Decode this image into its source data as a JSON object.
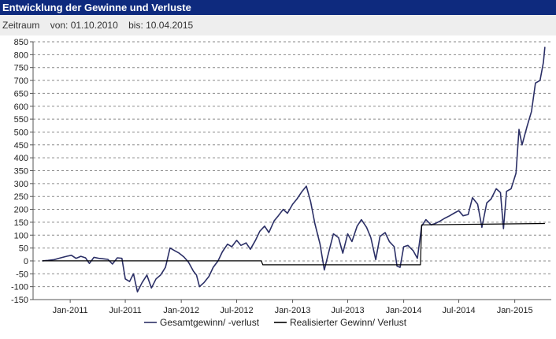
{
  "header": {
    "title": "Entwicklung der Gewinne und Verluste",
    "range_label": "Zeitraum",
    "from_text": "von: 01.10.2010",
    "to_text": "bis: 10.04.2015"
  },
  "chart_data": {
    "type": "line",
    "title": "",
    "xlabel": "",
    "ylabel": "",
    "ylim": [
      -150,
      850
    ],
    "yticks": [
      -150,
      -100,
      -50,
      0,
      50,
      100,
      150,
      200,
      250,
      300,
      350,
      400,
      450,
      500,
      550,
      600,
      650,
      700,
      750,
      800,
      850
    ],
    "xlim": [
      "2010-09-01",
      "2015-05-01"
    ],
    "xticks": [
      {
        "date": "2011-01-01",
        "label": "Jan-2011"
      },
      {
        "date": "2011-07-01",
        "label": "Jul-2011"
      },
      {
        "date": "2012-01-01",
        "label": "Jan-2012"
      },
      {
        "date": "2012-07-01",
        "label": "Jul-2012"
      },
      {
        "date": "2013-01-01",
        "label": "Jan-2013"
      },
      {
        "date": "2013-07-01",
        "label": "Jul-2013"
      },
      {
        "date": "2014-01-01",
        "label": "Jan-2014"
      },
      {
        "date": "2014-07-01",
        "label": "Jul-2014"
      },
      {
        "date": "2015-01-01",
        "label": "Jan-2015"
      }
    ],
    "grid": true,
    "legend_position": "bottom",
    "series": [
      {
        "name": "Gesamtgewinn/ -verlust",
        "color": "#2b2f66",
        "points": [
          [
            "2010-10-01",
            0
          ],
          [
            "2010-10-20",
            2
          ],
          [
            "2010-11-10",
            5
          ],
          [
            "2010-12-01",
            12
          ],
          [
            "2010-12-20",
            18
          ],
          [
            "2011-01-05",
            22
          ],
          [
            "2011-01-20",
            10
          ],
          [
            "2011-02-05",
            18
          ],
          [
            "2011-02-20",
            12
          ],
          [
            "2011-03-05",
            -10
          ],
          [
            "2011-03-20",
            14
          ],
          [
            "2011-04-05",
            10
          ],
          [
            "2011-04-20",
            8
          ],
          [
            "2011-05-05",
            6
          ],
          [
            "2011-05-20",
            -12
          ],
          [
            "2011-06-05",
            12
          ],
          [
            "2011-06-20",
            10
          ],
          [
            "2011-07-01",
            -70
          ],
          [
            "2011-07-15",
            -80
          ],
          [
            "2011-07-28",
            -50
          ],
          [
            "2011-08-10",
            -120
          ],
          [
            "2011-08-25",
            -85
          ],
          [
            "2011-09-10",
            -55
          ],
          [
            "2011-09-25",
            -105
          ],
          [
            "2011-10-10",
            -70
          ],
          [
            "2011-10-25",
            -55
          ],
          [
            "2011-11-10",
            -25
          ],
          [
            "2011-11-25",
            50
          ],
          [
            "2011-12-10",
            40
          ],
          [
            "2011-12-25",
            30
          ],
          [
            "2012-01-10",
            15
          ],
          [
            "2012-01-25",
            -5
          ],
          [
            "2012-02-10",
            -40
          ],
          [
            "2012-02-20",
            -55
          ],
          [
            "2012-03-01",
            -100
          ],
          [
            "2012-03-15",
            -85
          ],
          [
            "2012-04-01",
            -60
          ],
          [
            "2012-04-15",
            -25
          ],
          [
            "2012-05-01",
            0
          ],
          [
            "2012-05-15",
            35
          ],
          [
            "2012-06-01",
            65
          ],
          [
            "2012-06-15",
            55
          ],
          [
            "2012-07-01",
            80
          ],
          [
            "2012-07-15",
            60
          ],
          [
            "2012-08-01",
            70
          ],
          [
            "2012-08-15",
            45
          ],
          [
            "2012-09-01",
            80
          ],
          [
            "2012-09-15",
            115
          ],
          [
            "2012-10-01",
            135
          ],
          [
            "2012-10-15",
            110
          ],
          [
            "2012-11-01",
            155
          ],
          [
            "2012-11-15",
            175
          ],
          [
            "2012-12-01",
            200
          ],
          [
            "2012-12-15",
            185
          ],
          [
            "2013-01-01",
            220
          ],
          [
            "2013-01-15",
            240
          ],
          [
            "2013-02-01",
            270
          ],
          [
            "2013-02-15",
            290
          ],
          [
            "2013-03-01",
            230
          ],
          [
            "2013-03-15",
            145
          ],
          [
            "2013-04-01",
            65
          ],
          [
            "2013-04-15",
            -35
          ],
          [
            "2013-05-01",
            40
          ],
          [
            "2013-05-15",
            105
          ],
          [
            "2013-06-01",
            90
          ],
          [
            "2013-06-15",
            30
          ],
          [
            "2013-07-01",
            105
          ],
          [
            "2013-07-15",
            75
          ],
          [
            "2013-08-01",
            135
          ],
          [
            "2013-08-15",
            160
          ],
          [
            "2013-09-01",
            130
          ],
          [
            "2013-09-15",
            90
          ],
          [
            "2013-10-01",
            5
          ],
          [
            "2013-10-15",
            95
          ],
          [
            "2013-11-01",
            110
          ],
          [
            "2013-11-15",
            75
          ],
          [
            "2013-12-01",
            55
          ],
          [
            "2013-12-10",
            -20
          ],
          [
            "2013-12-20",
            -25
          ],
          [
            "2014-01-01",
            55
          ],
          [
            "2014-01-15",
            60
          ],
          [
            "2014-02-01",
            40
          ],
          [
            "2014-02-15",
            10
          ],
          [
            "2014-03-01",
            135
          ],
          [
            "2014-03-15",
            160
          ],
          [
            "2014-04-01",
            140
          ],
          [
            "2014-04-15",
            145
          ],
          [
            "2014-05-01",
            155
          ],
          [
            "2014-05-15",
            165
          ],
          [
            "2014-06-01",
            175
          ],
          [
            "2014-06-15",
            185
          ],
          [
            "2014-07-01",
            195
          ],
          [
            "2014-07-15",
            175
          ],
          [
            "2014-08-01",
            180
          ],
          [
            "2014-08-15",
            245
          ],
          [
            "2014-09-01",
            220
          ],
          [
            "2014-09-15",
            130
          ],
          [
            "2014-10-01",
            225
          ],
          [
            "2014-10-15",
            240
          ],
          [
            "2014-11-01",
            280
          ],
          [
            "2014-11-15",
            265
          ],
          [
            "2014-11-25",
            125
          ],
          [
            "2014-12-05",
            270
          ],
          [
            "2014-12-20",
            280
          ],
          [
            "2015-01-05",
            340
          ],
          [
            "2015-01-15",
            510
          ],
          [
            "2015-01-25",
            450
          ],
          [
            "2015-02-10",
            520
          ],
          [
            "2015-02-25",
            580
          ],
          [
            "2015-03-10",
            690
          ],
          [
            "2015-03-25",
            700
          ],
          [
            "2015-04-05",
            770
          ],
          [
            "2015-04-10",
            830
          ]
        ]
      },
      {
        "name": "Realisierter Gewinn/ Verlust",
        "color": "#000000",
        "points": [
          [
            "2010-10-01",
            0
          ],
          [
            "2012-09-20",
            0
          ],
          [
            "2012-09-25",
            -15
          ],
          [
            "2014-02-25",
            -15
          ],
          [
            "2014-03-01",
            140
          ],
          [
            "2015-04-10",
            145
          ]
        ]
      }
    ]
  }
}
